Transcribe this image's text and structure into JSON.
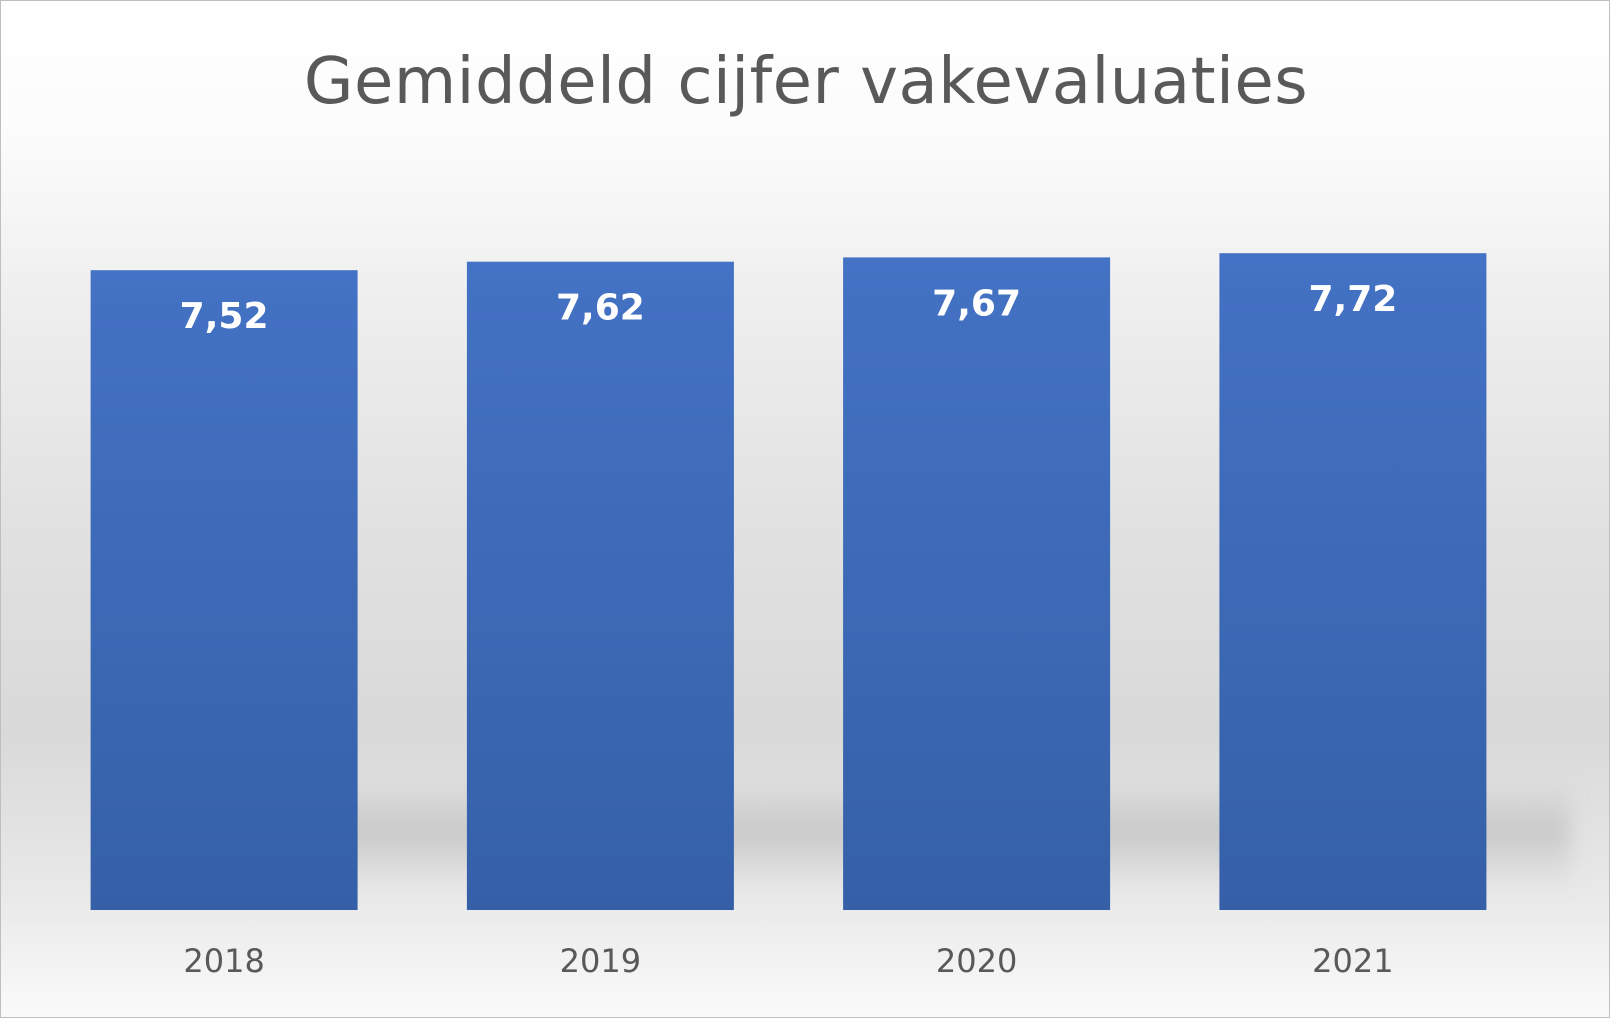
{
  "chart_data": {
    "type": "bar",
    "title": "Gemiddeld cijfer vakevaluaties",
    "categories": [
      "2018",
      "2019",
      "2020",
      "2021"
    ],
    "values": [
      7.52,
      7.62,
      7.67,
      7.72
    ],
    "value_labels": [
      "7,52",
      "7,62",
      "7,67",
      "7,72"
    ],
    "xlabel": "",
    "ylabel": "",
    "grid": false,
    "legend": "none",
    "bar_color_top": "#4472c4",
    "bar_color_bottom": "#3560a8"
  }
}
